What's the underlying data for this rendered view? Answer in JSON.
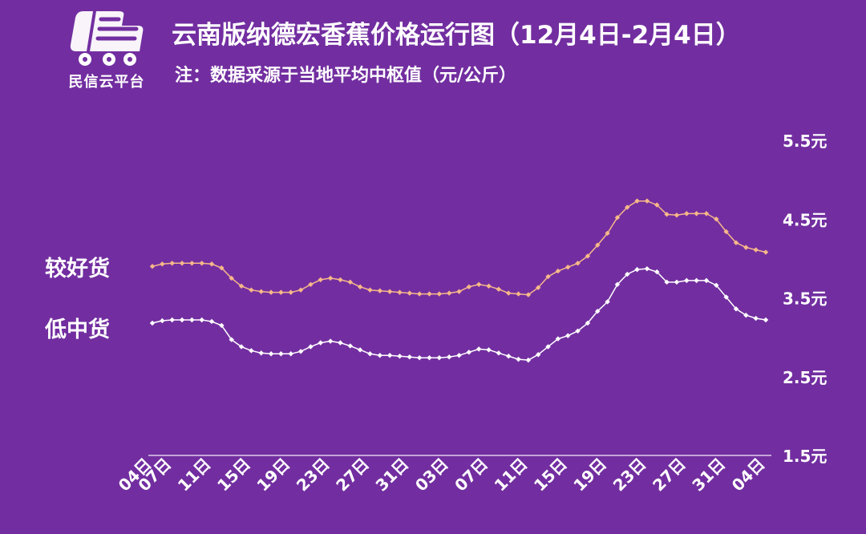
{
  "logo": {
    "text": "民信云平台"
  },
  "title": "云南版纳德宏香蕉价格运行图（12月4日-2月4日）",
  "subtitle": "注：数据采源于当地平均中枢值（元/公斤）",
  "colors": {
    "background": "#722ea0",
    "good_series": "#f7b889",
    "low_series": "#ffffff",
    "text": "#ffffff"
  },
  "chart_data": {
    "type": "line",
    "title": "云南版纳德宏香蕉价格运行图（12月4日-2月4日）",
    "ylim": [
      1.5,
      5.5
    ],
    "y_ticks": [
      "5.5元",
      "4.5元",
      "3.5元",
      "2.5元",
      "1.5元"
    ],
    "y_tick_values": [
      5.5,
      4.5,
      3.5,
      2.5,
      1.5
    ],
    "x_ticks": [
      "04日",
      "07日",
      "11日",
      "15日",
      "19日",
      "23日",
      "27日",
      "31日",
      "03日",
      "07日",
      "11日",
      "15日",
      "19日",
      "23日",
      "27日",
      "31日",
      "04日"
    ],
    "x_tick_positions": [
      0,
      2,
      6,
      10,
      14,
      18,
      22,
      26,
      30,
      34,
      38,
      42,
      46,
      50,
      54,
      58,
      62
    ],
    "grid": false,
    "series": [
      {
        "name": "较好货",
        "values": [
          3.9,
          3.93,
          3.94,
          3.94,
          3.94,
          3.94,
          3.93,
          3.88,
          3.75,
          3.65,
          3.6,
          3.58,
          3.57,
          3.57,
          3.57,
          3.6,
          3.67,
          3.73,
          3.75,
          3.73,
          3.7,
          3.64,
          3.6,
          3.59,
          3.58,
          3.57,
          3.56,
          3.55,
          3.55,
          3.55,
          3.56,
          3.58,
          3.64,
          3.67,
          3.65,
          3.61,
          3.56,
          3.55,
          3.54,
          3.63,
          3.77,
          3.84,
          3.89,
          3.94,
          4.03,
          4.17,
          4.32,
          4.52,
          4.65,
          4.73,
          4.73,
          4.68,
          4.56,
          4.55,
          4.57,
          4.57,
          4.57,
          4.5,
          4.34,
          4.2,
          4.14,
          4.11,
          4.08
        ]
      },
      {
        "name": "低中货",
        "values": [
          3.18,
          3.21,
          3.22,
          3.22,
          3.22,
          3.22,
          3.2,
          3.15,
          2.97,
          2.88,
          2.83,
          2.8,
          2.79,
          2.79,
          2.79,
          2.82,
          2.88,
          2.93,
          2.95,
          2.93,
          2.89,
          2.84,
          2.79,
          2.77,
          2.77,
          2.76,
          2.75,
          2.74,
          2.74,
          2.74,
          2.75,
          2.77,
          2.81,
          2.85,
          2.84,
          2.8,
          2.76,
          2.72,
          2.71,
          2.78,
          2.88,
          2.98,
          3.02,
          3.08,
          3.18,
          3.33,
          3.45,
          3.67,
          3.8,
          3.86,
          3.87,
          3.83,
          3.7,
          3.7,
          3.72,
          3.72,
          3.72,
          3.66,
          3.51,
          3.36,
          3.28,
          3.24,
          3.22
        ]
      }
    ]
  }
}
